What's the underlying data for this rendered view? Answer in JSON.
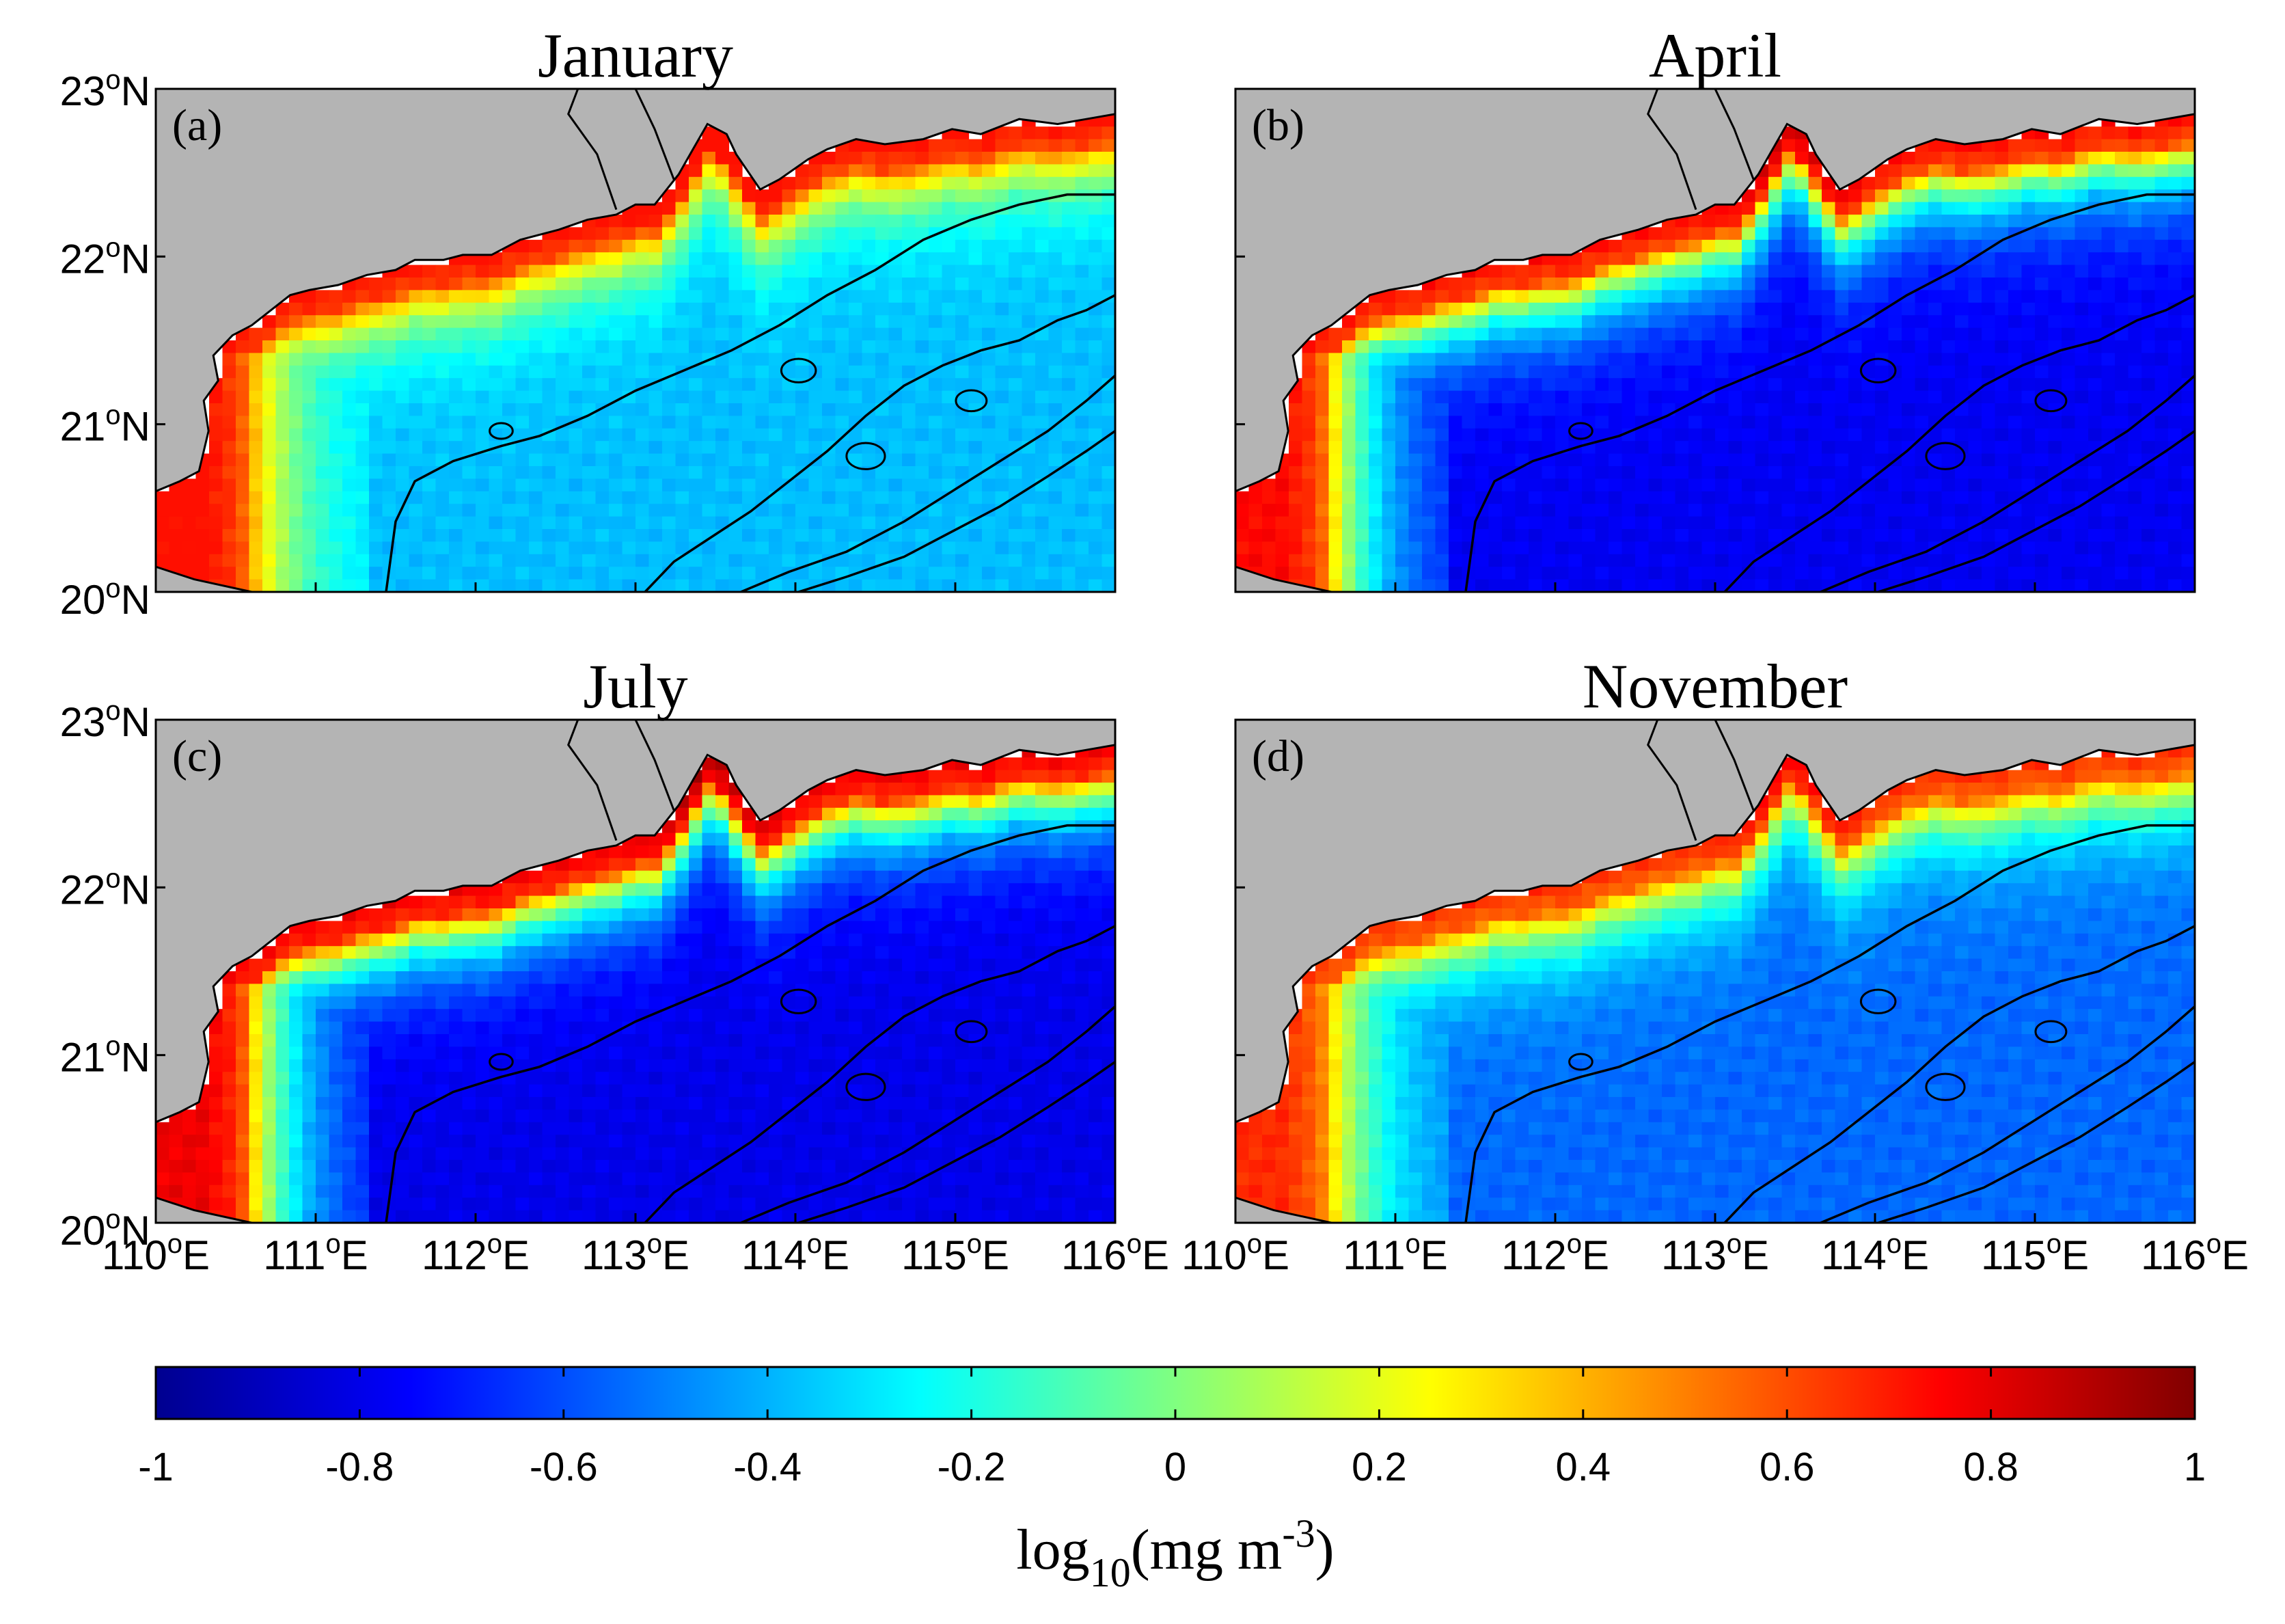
{
  "figure": {
    "panels": [
      {
        "id": "a",
        "label": "(a)",
        "title": "January",
        "peak": 0.62,
        "offshore": -0.38,
        "max": 0.72
      },
      {
        "id": "b",
        "label": "(b)",
        "title": "April",
        "peak": 0.62,
        "offshore": -0.78,
        "max": 0.85
      },
      {
        "id": "c",
        "label": "(c)",
        "title": "July",
        "peak": 0.66,
        "offshore": -0.8,
        "max": 0.95
      },
      {
        "id": "d",
        "label": "(d)",
        "title": "November",
        "peak": 0.55,
        "offshore": -0.55,
        "max": 0.75
      }
    ],
    "axes": {
      "lat_ticks": [
        {
          "value": 23,
          "deg": "23",
          "hemi": "N"
        },
        {
          "value": 22,
          "deg": "22",
          "hemi": "N"
        },
        {
          "value": 21,
          "deg": "21",
          "hemi": "N"
        },
        {
          "value": 20,
          "deg": "20",
          "hemi": "N"
        }
      ],
      "lon_ticks": [
        {
          "value": 110,
          "deg": "110",
          "hemi": "E"
        },
        {
          "value": 111,
          "deg": "111",
          "hemi": "E"
        },
        {
          "value": 112,
          "deg": "112",
          "hemi": "E"
        },
        {
          "value": 113,
          "deg": "113",
          "hemi": "E"
        },
        {
          "value": 114,
          "deg": "114",
          "hemi": "E"
        },
        {
          "value": 115,
          "deg": "115",
          "hemi": "E"
        },
        {
          "value": 116,
          "deg": "116",
          "hemi": "E"
        }
      ],
      "degree_symbol": "o",
      "lon_range": [
        110,
        116
      ],
      "lat_range": [
        20,
        23
      ]
    },
    "colorbar": {
      "ticks": [
        "-1",
        "-0.8",
        "-0.6",
        "-0.4",
        "-0.2",
        "0",
        "0.2",
        "0.4",
        "0.6",
        "0.8",
        "1"
      ],
      "range": [
        -1,
        1
      ],
      "label_main": "log",
      "label_sub": "10",
      "label_rest": "(mg m",
      "label_sup": "-3",
      "label_close": ")"
    },
    "colors": {
      "land": "#b4b4b4",
      "coastline": "#000000",
      "contour": "#000000",
      "jet": [
        "#00008f",
        "#0000ff",
        "#0080ff",
        "#00ffff",
        "#80ff80",
        "#ffff00",
        "#ff8000",
        "#ff0000",
        "#800000"
      ]
    }
  }
}
